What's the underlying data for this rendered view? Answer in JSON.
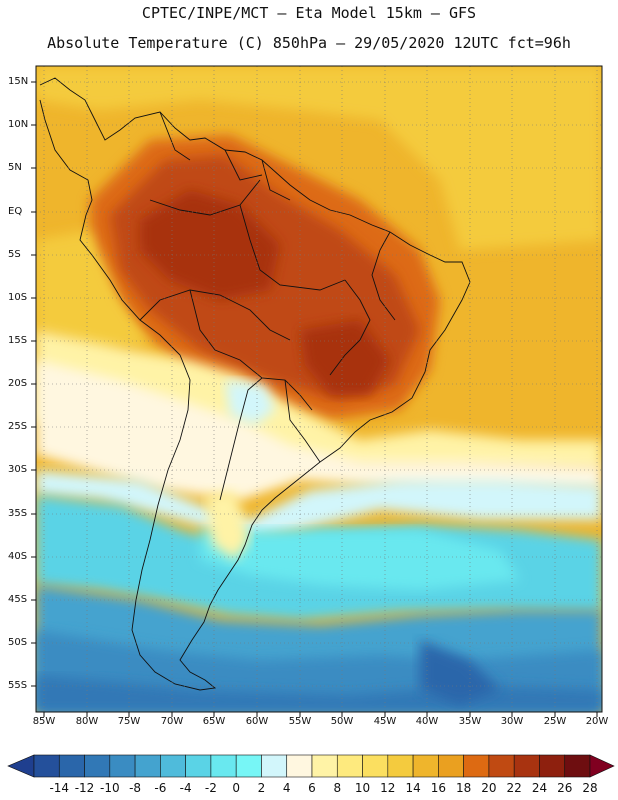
{
  "header": {
    "title_line1": "CPTEC/INPE/MCT –  Eta Model 15km – GFS",
    "title_line2": "Absolute Temperature (C) 850hPa – 29/05/2020 12UTC fct=96h"
  },
  "axes": {
    "lat_labels": [
      "15N",
      "10N",
      "5N",
      "EQ",
      "5S",
      "10S",
      "15S",
      "20S",
      "25S",
      "30S",
      "35S",
      "40S",
      "45S",
      "50S",
      "55S"
    ],
    "lon_labels": [
      "85W",
      "80W",
      "75W",
      "70W",
      "65W",
      "60W",
      "55W",
      "50W",
      "45W",
      "40W",
      "35W",
      "30W",
      "25W",
      "20W"
    ]
  },
  "colorbar": {
    "labels": [
      "-14",
      "-12",
      "-10",
      "-8",
      "-6",
      "-4",
      "-2",
      "0",
      "2",
      "4",
      "6",
      "8",
      "10",
      "12",
      "14",
      "16",
      "18",
      "20",
      "22",
      "24",
      "26",
      "28"
    ],
    "colors": [
      "#1f3f8f",
      "#24509b",
      "#2a66aa",
      "#3178b6",
      "#3a8cc2",
      "#44a3cf",
      "#4fbbdb",
      "#5ad3e6",
      "#69e8ef",
      "#77f6f6",
      "#d2f6fb",
      "#fff7e0",
      "#fff3a6",
      "#feea7e",
      "#fbdf60",
      "#f4cb3e",
      "#efb52c",
      "#eaa020",
      "#dd6a12",
      "#c04a12",
      "#a83310",
      "#8e200e",
      "#6e0e10",
      "#800020"
    ]
  },
  "map": {
    "region": "South America",
    "variable": "Absolute Temperature 850hPa",
    "units": "C"
  }
}
